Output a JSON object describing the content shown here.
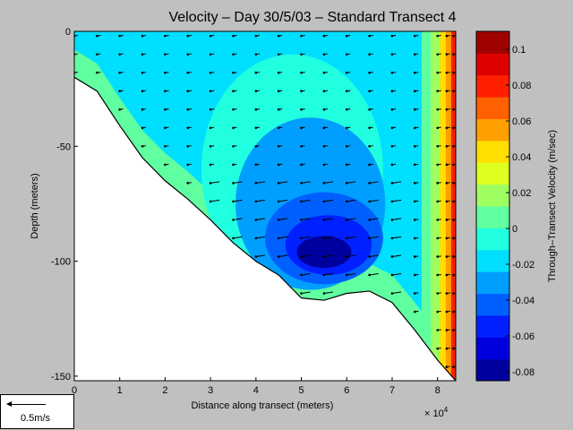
{
  "chart_data": {
    "type": "heatmap",
    "title": "Velocity – Day 30/5/03 – Standard Transect 4",
    "xlabel": "Distance along transect (meters)",
    "x_multiplier": "× 10",
    "x_multiplier_exp": "4",
    "ylabel": "Depth (meters)",
    "colorbar_label": "Through–Transect Velocity (m/sec)",
    "xlim": [
      0,
      84000
    ],
    "ylim": [
      -152,
      0
    ],
    "x_ticks": [
      0,
      1,
      2,
      3,
      4,
      5,
      6,
      7,
      8
    ],
    "y_ticks": [
      0,
      -50,
      -100,
      -150
    ],
    "colorbar_ticks": [
      0.1,
      0.08,
      0.06,
      0.04,
      0.02,
      0,
      -0.02,
      -0.04,
      -0.06,
      -0.08
    ],
    "colorbar_range": [
      -0.085,
      0.11
    ],
    "seabed": [
      {
        "x": 0,
        "depth": -20
      },
      {
        "x": 5000,
        "depth": -26
      },
      {
        "x": 10000,
        "depth": -41
      },
      {
        "x": 15000,
        "depth": -55
      },
      {
        "x": 20000,
        "depth": -65
      },
      {
        "x": 25000,
        "depth": -73
      },
      {
        "x": 30000,
        "depth": -82
      },
      {
        "x": 35000,
        "depth": -92
      },
      {
        "x": 40000,
        "depth": -100
      },
      {
        "x": 45000,
        "depth": -106
      },
      {
        "x": 50000,
        "depth": -116
      },
      {
        "x": 55000,
        "depth": -117
      },
      {
        "x": 60000,
        "depth": -114
      },
      {
        "x": 65000,
        "depth": -113
      },
      {
        "x": 70000,
        "depth": -118
      },
      {
        "x": 75000,
        "depth": -130
      },
      {
        "x": 80000,
        "depth": -143
      },
      {
        "x": 84000,
        "depth": -152
      }
    ],
    "core_regions": [
      {
        "velocity": -0.01,
        "center_x": 48000,
        "center_depth": -60,
        "width": 40000,
        "height": 100
      },
      {
        "velocity": -0.03,
        "center_x": 52000,
        "center_depth": -75,
        "width": 33000,
        "height": 75
      },
      {
        "velocity": -0.045,
        "center_x": 55000,
        "center_depth": -90,
        "width": 26000,
        "height": 40
      },
      {
        "velocity": -0.06,
        "center_x": 56000,
        "center_depth": -93,
        "width": 19000,
        "height": 26
      },
      {
        "velocity": -0.075,
        "center_x": 55000,
        "center_depth": -96,
        "width": 12000,
        "height": 14
      }
    ],
    "east_edge_bands": [
      {
        "velocity": 0.005,
        "x_start": 76500
      },
      {
        "velocity": 0.02,
        "x_start": 78500
      },
      {
        "velocity": 0.04,
        "x_start": 80500
      },
      {
        "velocity": 0.06,
        "x_start": 81800
      },
      {
        "velocity": 0.08,
        "x_start": 83000
      }
    ],
    "background_velocity": -0.012,
    "shelf_velocity": 0.01,
    "arrow_stations": [
      0,
      5000,
      10000,
      15000,
      20000,
      25000,
      30000,
      35000,
      40000,
      45000,
      50000,
      55000,
      60000,
      65000,
      70000,
      75000,
      80000,
      82000,
      83500
    ],
    "arrow_scale": {
      "label": "0.5m/s",
      "speed": 0.5
    }
  }
}
